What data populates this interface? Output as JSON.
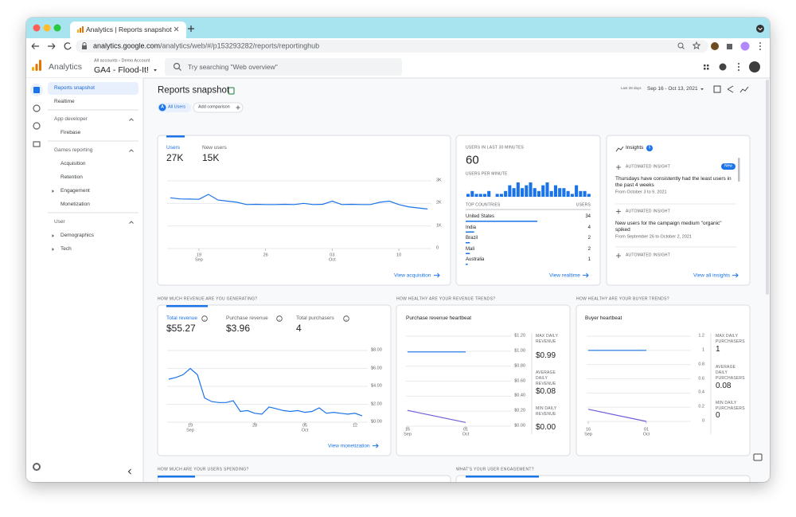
{
  "browser": {
    "tab_title": "Analytics | Reports snapshot",
    "url_host": "analytics.google.com",
    "url_path": "/analytics/web/#/p153293282/reports/reportinghub"
  },
  "header": {
    "product": "Analytics",
    "breadcrumb": "All accounts › Demo Account",
    "account": "GA4 - Flood-It!",
    "search_placeholder": "Try searching \"Web overview\""
  },
  "sidebar": {
    "sections": [
      {
        "items": [
          {
            "label": "Reports snapshot",
            "selected": true
          },
          {
            "label": "Realtime"
          }
        ]
      },
      {
        "title": "App developer",
        "items": [
          {
            "label": "Firebase"
          }
        ]
      },
      {
        "title": "Games reporting",
        "items": [
          {
            "label": "Acquisition"
          },
          {
            "label": "Retention"
          },
          {
            "label": "Engagement",
            "expandable": true
          },
          {
            "label": "Monetization"
          }
        ]
      },
      {
        "title": "User",
        "items": [
          {
            "label": "Demographics",
            "expandable": true
          },
          {
            "label": "Tech",
            "expandable": true
          }
        ]
      }
    ]
  },
  "page": {
    "title": "Reports snapshot",
    "segment_letter": "A",
    "segment": "All Users",
    "add_comparison": "Add comparison",
    "date_label": "Last 28 days",
    "date_range": "Sep 16 - Oct 13, 2021"
  },
  "users_card": {
    "metrics": [
      {
        "label": "Users",
        "value": "27K"
      },
      {
        "label": "New users",
        "value": "15K"
      }
    ],
    "chart": {
      "type": "line",
      "ylim": [
        0,
        3000
      ],
      "yticks": [
        {
          "value": 3000,
          "label": "3K"
        },
        {
          "value": 2000,
          "label": "2K"
        },
        {
          "value": 1000,
          "label": "1K"
        },
        0
      ],
      "categories": [
        null,
        null,
        null,
        {
          "day": "19",
          "month": "Sep"
        },
        null,
        null,
        null,
        null,
        null,
        null,
        {
          "day": "26"
        },
        null,
        null,
        null,
        null,
        null,
        null,
        {
          "day": "03",
          "month": "Oct"
        },
        null,
        null,
        null,
        null,
        null,
        null,
        {
          "day": "10"
        },
        null,
        null,
        null
      ],
      "series": [
        {
          "color": "#1a73e8",
          "values": [
            2250,
            2200,
            2190,
            2180,
            2400,
            2150,
            2100,
            2050,
            1950,
            1960,
            1950,
            1950,
            1960,
            1950,
            2000,
            1950,
            1960,
            2100,
            1950,
            1960,
            1950,
            1950,
            2050,
            2100,
            1950,
            1850,
            1800,
            1750
          ]
        }
      ]
    },
    "link": "View acquisition"
  },
  "realtime_card": {
    "title": "USERS IN LAST 30 MINUTES",
    "value": 60,
    "per_minute_label": "USERS PER MINUTE",
    "per_minute": {
      "type": "bar",
      "color": "#1a73e8",
      "values": [
        1,
        2,
        1,
        1,
        1,
        2,
        0,
        1,
        1,
        2,
        4,
        3,
        5,
        3,
        4,
        5,
        3,
        2,
        4,
        5,
        2,
        4,
        3,
        3,
        2,
        1,
        4,
        2,
        2,
        1
      ]
    },
    "countries_label": "TOP COUNTRIES",
    "users_label": "USERS",
    "countries": [
      {
        "name": "United States",
        "users": 34
      },
      {
        "name": "India",
        "users": 4
      },
      {
        "name": "Brazil",
        "users": 2
      },
      {
        "name": "Mali",
        "users": 2
      },
      {
        "name": "Australia",
        "users": 1
      }
    ],
    "link": "View realtime"
  },
  "insights_card": {
    "title": "Insights",
    "count": 5,
    "items": [
      {
        "label": "AUTOMATED INSIGHT",
        "badge": "New",
        "text": "Thursdays have consistently had the least users in the past 4 weeks",
        "date": "From October 3 to 9, 2021"
      },
      {
        "label": "AUTOMATED INSIGHT",
        "text": "New users for the campaign medium \"organic\" spiked",
        "date": "From September 26 to October 2, 2021"
      },
      {
        "label": "AUTOMATED INSIGHT"
      }
    ],
    "link": "View all insights"
  },
  "section_labels": [
    "HOW MUCH REVENUE ARE YOU GENERATING?",
    "HOW HEALTHY ARE YOUR REVENUE TRENDS?",
    "HOW HEALTHY ARE YOUR BUYER TRENDS?",
    "HOW MUCH ARE YOUR USERS SPENDING?",
    "WHAT'S YOUR USER ENGAGEMENT?"
  ],
  "revenue_card": {
    "metrics": [
      {
        "label": "Total revenue",
        "value": "$55.27"
      },
      {
        "label": "Purchase revenue",
        "value": "$3.96"
      },
      {
        "label": "Total purchasers",
        "value": "4"
      }
    ],
    "chart": {
      "type": "line",
      "ylim": [
        0,
        8
      ],
      "yticks": [
        {
          "value": 8,
          "label": "$8.00"
        },
        {
          "value": 6,
          "label": "$6.00"
        },
        {
          "value": 4,
          "label": "$4.00"
        },
        {
          "value": 2,
          "label": "$2.00"
        },
        {
          "value": 0,
          "label": "$0.00"
        }
      ],
      "categories": [
        null,
        null,
        null,
        {
          "day": "19",
          "month": "Sep"
        },
        null,
        null,
        null,
        null,
        null,
        null,
        null,
        null,
        {
          "day": "28"
        },
        null,
        null,
        null,
        null,
        null,
        null,
        {
          "day": "05",
          "month": "Oct"
        },
        null,
        null,
        null,
        null,
        null,
        null,
        {
          "day": "12"
        },
        null
      ],
      "series": [
        {
          "color": "#1a73e8",
          "values": [
            4.8,
            5.0,
            5.3,
            6.0,
            5.3,
            2.7,
            2.3,
            2.2,
            2.2,
            2.4,
            1.2,
            1.3,
            1.0,
            0.9,
            1.7,
            1.5,
            1.3,
            1.2,
            1.3,
            1.1,
            1.2,
            1.6,
            1.0,
            1.1,
            1.0,
            0.9,
            1.0,
            0.7
          ]
        }
      ]
    },
    "link": "View monetization"
  },
  "purchase_heartbeat": {
    "title": "Purchase revenue heartbeat",
    "chart": {
      "type": "line",
      "ylim": [
        0,
        1.2
      ],
      "yticks": [
        {
          "value": 1.2,
          "label": "$1.20"
        },
        {
          "value": 1,
          "label": "$1.00"
        },
        {
          "value": 0.8,
          "label": "$0.80"
        },
        {
          "value": 0.6,
          "label": "$0.60"
        },
        {
          "value": 0.4,
          "label": "$0.40"
        },
        {
          "value": 0.2,
          "label": "$0.20"
        },
        {
          "value": 0,
          "label": "$0.00"
        }
      ],
      "categories": [
        {
          "day": "16",
          "month": "Sep"
        },
        {
          "day": "01",
          "month": "Oct"
        }
      ],
      "series": [
        {
          "color": "#1a73e8",
          "values": [
            0.99,
            0.99
          ]
        },
        {
          "color": "#6e5fd9",
          "values": [
            0.21,
            0.05
          ]
        }
      ]
    },
    "stats": [
      {
        "label": "MAX DAILY REVENUE",
        "value": "$0.99"
      },
      {
        "label": "AVERAGE DAILY REVENUE",
        "value": "$0.08"
      },
      {
        "label": "MIN DAILY REVENUE",
        "value": "$0.00"
      }
    ]
  },
  "buyer_heartbeat": {
    "title": "Buyer heartbeat",
    "chart": {
      "type": "line",
      "ylim": [
        0,
        1.2
      ],
      "yticks": [
        1.2,
        1,
        0.8,
        0.6,
        0.4,
        0.2,
        0
      ],
      "categories": [
        {
          "day": "16",
          "month": "Sep"
        },
        {
          "day": "01",
          "month": "Oct"
        }
      ],
      "series": [
        {
          "color": "#1a73e8",
          "values": [
            1,
            1
          ]
        },
        {
          "color": "#6e5fd9",
          "values": [
            0.17,
            0
          ]
        }
      ]
    },
    "stats": [
      {
        "label": "MAX DAILY PURCHASERS",
        "value": "1"
      },
      {
        "label": "AVERAGE DAILY PURCHASERS",
        "value": "0.08"
      },
      {
        "label": "MIN DAILY PURCHASERS",
        "value": "0"
      }
    ]
  }
}
